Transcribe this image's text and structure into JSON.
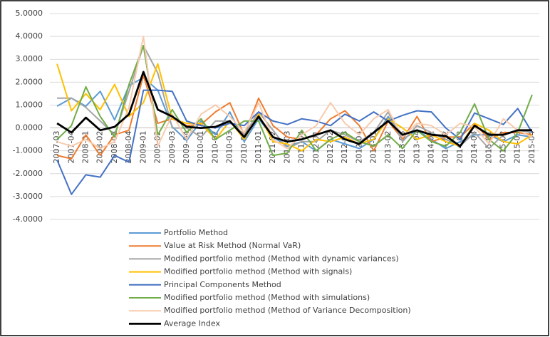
{
  "chart_data": {
    "type": "line",
    "categories": [
      "2007-03",
      "2007-04",
      "2008-01",
      "2008-02",
      "2008-03",
      "2008-04",
      "2009-01",
      "2009-02",
      "2009-03",
      "2009-04",
      "2010-01",
      "2010-02",
      "2010-03",
      "2010-04",
      "2011-01",
      "2011-02",
      "2011-03",
      "2011-04",
      "2012-01",
      "2012-02",
      "2012-03",
      "2012-04",
      "2013-01",
      "2013-02",
      "2013-03",
      "2013-04",
      "2014-01",
      "2014-02",
      "2014-03",
      "2014-04",
      "2015-01",
      "2015-02",
      "2015-03",
      "2015-04"
    ],
    "series": [
      {
        "name": "Portfolio Method",
        "color": "#5b9bd5",
        "values": [
          0.95,
          1.3,
          0.95,
          1.6,
          0.35,
          1.85,
          2.2,
          1.65,
          0.05,
          -0.55,
          0.3,
          -0.3,
          0.7,
          -0.6,
          0.4,
          -0.4,
          -0.8,
          -0.6,
          -1.0,
          -0.5,
          -0.7,
          -0.9,
          -0.5,
          0.5,
          -0.5,
          -0.1,
          -0.5,
          -0.9,
          -0.6,
          -0.3,
          -0.3,
          -0.6,
          -0.3,
          -0.4
        ]
      },
      {
        "name": "Value at Risk Method (Normal VaR)",
        "color": "#ed7d31",
        "values": [
          -1.2,
          -1.35,
          -0.3,
          -1.2,
          -0.3,
          -0.1,
          2.3,
          0.2,
          0.4,
          0.1,
          0.15,
          0.7,
          1.1,
          -0.3,
          1.3,
          0.1,
          -0.4,
          -0.5,
          -0.3,
          0.4,
          0.75,
          0.1,
          -1.0,
          0.3,
          -0.5,
          0.5,
          -0.6,
          -0.4,
          -0.4,
          0.2,
          -0.5,
          -0.2,
          -0.2,
          -0.3
        ]
      },
      {
        "name": "Modified portfolio method (Method with dynamic variances)",
        "color": "#a5a5a5",
        "values": [
          1.3,
          1.3,
          0.9,
          0.3,
          -0.3,
          1.6,
          3.6,
          2.4,
          0.0,
          0.0,
          -0.4,
          0.3,
          0.3,
          -0.3,
          0.7,
          -0.1,
          -0.9,
          -0.6,
          -0.6,
          -0.1,
          -0.3,
          -0.6,
          -0.2,
          0.7,
          -0.6,
          0.1,
          -0.2,
          -0.5,
          -0.8,
          -0.2,
          -0.9,
          -0.3,
          -0.1,
          -0.2
        ]
      },
      {
        "name": "Modified portfolio method (Method with signals)",
        "color": "#ffc000",
        "values": [
          2.8,
          0.75,
          1.5,
          0.8,
          1.9,
          0.5,
          1.1,
          2.8,
          0.4,
          0.2,
          0.2,
          -0.5,
          0.3,
          -0.5,
          0.6,
          -0.6,
          -0.7,
          -1.0,
          -0.5,
          -0.6,
          -0.4,
          -0.7,
          -0.5,
          0.4,
          0.0,
          -0.5,
          -0.3,
          -0.6,
          -0.8,
          0.2,
          -0.1,
          -0.6,
          -0.7,
          -0.3
        ]
      },
      {
        "name": "Principal Components Method",
        "color": "#4472c4",
        "values": [
          -1.4,
          -2.9,
          -2.05,
          -2.15,
          -1.2,
          -1.5,
          1.65,
          1.65,
          1.6,
          0.3,
          0.1,
          0.0,
          0.2,
          0.1,
          0.7,
          0.3,
          0.15,
          0.4,
          0.3,
          0.1,
          0.6,
          0.3,
          0.7,
          0.3,
          0.55,
          0.75,
          0.7,
          0.0,
          -0.5,
          0.65,
          0.4,
          0.15,
          0.85,
          -0.2
        ]
      },
      {
        "name": "Modified portfolio method (Method with simulations)",
        "color": "#70ad47",
        "values": [
          -0.5,
          0.1,
          1.8,
          0.5,
          -0.4,
          1.9,
          3.6,
          -0.3,
          0.8,
          -0.2,
          0.4,
          -0.5,
          -0.1,
          0.3,
          0.3,
          -1.2,
          -1.1,
          -0.1,
          -1.0,
          -0.5,
          -0.2,
          -0.6,
          -0.8,
          -0.3,
          -0.9,
          -0.1,
          -0.6,
          -0.8,
          -0.2,
          1.05,
          -0.5,
          -1.0,
          -0.2,
          1.45
        ]
      },
      {
        "name": "Modified portfolio method (Method of Variance Decomposition)",
        "color": "#f8cbad",
        "values": [
          -0.6,
          -0.8,
          -0.5,
          -0.9,
          -0.6,
          0.9,
          4.0,
          -0.8,
          0.6,
          -0.5,
          0.6,
          1.0,
          0.5,
          -0.2,
          1.1,
          -0.5,
          -0.9,
          -0.3,
          0.1,
          1.1,
          0.2,
          -0.3,
          0.4,
          0.8,
          -0.4,
          0.2,
          0.1,
          -0.3,
          0.2,
          0.05,
          -0.7,
          0.4,
          -0.1,
          -0.4
        ]
      },
      {
        "name": "Average Index",
        "color": "#000000",
        "values": [
          0.2,
          -0.2,
          0.45,
          -0.1,
          0.05,
          0.6,
          2.45,
          0.8,
          0.5,
          0.05,
          0.0,
          0.05,
          0.3,
          -0.4,
          0.5,
          -0.4,
          -0.6,
          -0.5,
          -0.3,
          -0.1,
          -0.5,
          -0.7,
          -0.2,
          0.3,
          -0.3,
          -0.1,
          -0.3,
          -0.35,
          -0.8,
          0.1,
          -0.3,
          -0.3,
          -0.1,
          -0.1
        ]
      }
    ],
    "ylim": [
      -4,
      5
    ],
    "yticks": [
      {
        "value": 5,
        "label": "5.0000"
      },
      {
        "value": 4,
        "label": "4.0000"
      },
      {
        "value": 3,
        "label": "3.0000"
      },
      {
        "value": 2,
        "label": "2.0000"
      },
      {
        "value": 1,
        "label": "1.0000"
      },
      {
        "value": 0,
        "label": "0.0000"
      },
      {
        "value": -1,
        "label": "-1.0000"
      },
      {
        "value": -2,
        "label": "-2.0000"
      },
      {
        "value": -3,
        "label": "-3.0000"
      },
      {
        "value": -4,
        "label": "-4.0000"
      }
    ],
    "grid": true,
    "legend": "bottom"
  }
}
